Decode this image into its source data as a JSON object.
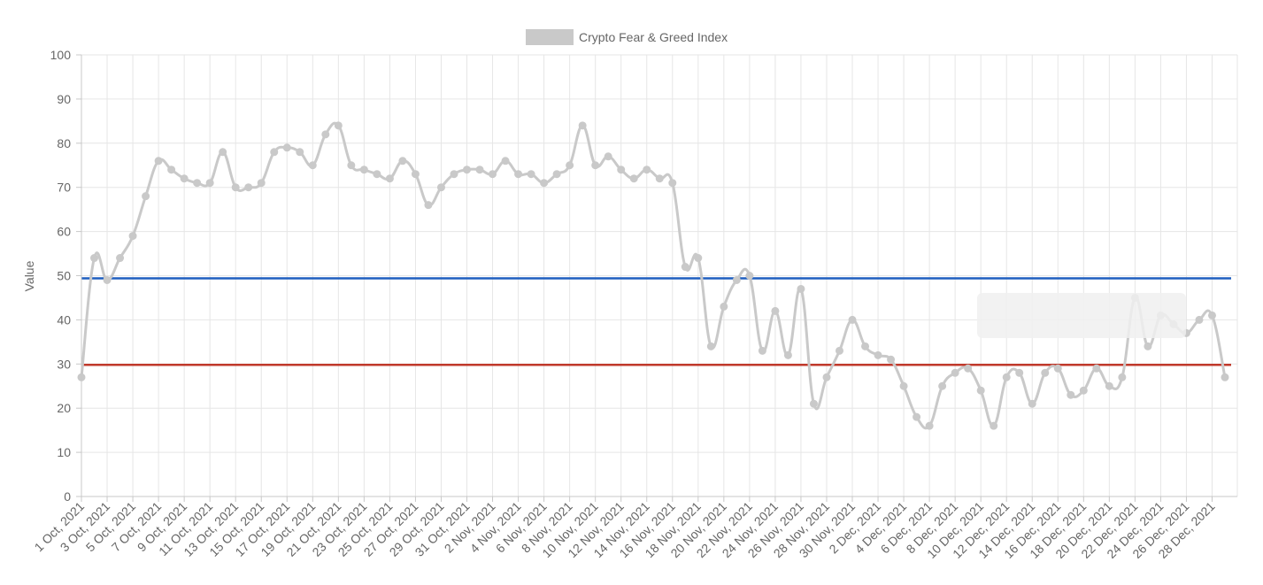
{
  "colors": {
    "series_line": "#c9c9c9",
    "series_point": "#c9c9c9",
    "upper_line": "#1f5fbf",
    "lower_line": "#c0392b",
    "grid": "#e6e6e6",
    "axis": "#c8c8c8",
    "tick_text": "#666666",
    "tooltip_bg": "#f0f0f0"
  },
  "chart_data": {
    "type": "line",
    "ylabel": "Value",
    "ylim": [
      0,
      100
    ],
    "y_ticks": [
      0,
      10,
      20,
      30,
      40,
      50,
      60,
      70,
      80,
      90,
      100
    ],
    "grid": true,
    "legend": {
      "position": "top-center",
      "label": "Crypto Fear & Greed Index"
    },
    "x": [
      "1 Oct, 2021",
      "2 Oct, 2021",
      "3 Oct, 2021",
      "4 Oct, 2021",
      "5 Oct, 2021",
      "6 Oct, 2021",
      "7 Oct, 2021",
      "8 Oct, 2021",
      "9 Oct, 2021",
      "10 Oct, 2021",
      "11 Oct, 2021",
      "12 Oct, 2021",
      "13 Oct, 2021",
      "14 Oct, 2021",
      "15 Oct, 2021",
      "16 Oct, 2021",
      "17 Oct, 2021",
      "18 Oct, 2021",
      "19 Oct, 2021",
      "20 Oct, 2021",
      "21 Oct, 2021",
      "22 Oct, 2021",
      "23 Oct, 2021",
      "24 Oct, 2021",
      "25 Oct, 2021",
      "26 Oct, 2021",
      "27 Oct, 2021",
      "28 Oct, 2021",
      "29 Oct, 2021",
      "30 Oct, 2021",
      "31 Oct, 2021",
      "1 Nov, 2021",
      "2 Nov, 2021",
      "3 Nov, 2021",
      "4 Nov, 2021",
      "5 Nov, 2021",
      "6 Nov, 2021",
      "7 Nov, 2021",
      "8 Nov, 2021",
      "9 Nov, 2021",
      "10 Nov, 2021",
      "11 Nov, 2021",
      "12 Nov, 2021",
      "13 Nov, 2021",
      "14 Nov, 2021",
      "15 Nov, 2021",
      "16 Nov, 2021",
      "17 Nov, 2021",
      "18 Nov, 2021",
      "19 Nov, 2021",
      "20 Nov, 2021",
      "21 Nov, 2021",
      "22 Nov, 2021",
      "23 Nov, 2021",
      "24 Nov, 2021",
      "25 Nov, 2021",
      "26 Nov, 2021",
      "27 Nov, 2021",
      "28 Nov, 2021",
      "29 Nov, 2021",
      "30 Nov, 2021",
      "1 Dec, 2021",
      "2 Dec, 2021",
      "3 Dec, 2021",
      "4 Dec, 2021",
      "5 Dec, 2021",
      "6 Dec, 2021",
      "7 Dec, 2021",
      "8 Dec, 2021",
      "9 Dec, 2021",
      "10 Dec, 2021",
      "11 Dec, 2021",
      "12 Dec, 2021",
      "13 Dec, 2021",
      "14 Dec, 2021",
      "15 Dec, 2021",
      "16 Dec, 2021",
      "17 Dec, 2021",
      "18 Dec, 2021",
      "19 Dec, 2021",
      "20 Dec, 2021",
      "21 Dec, 2021",
      "22 Dec, 2021",
      "23 Dec, 2021",
      "24 Dec, 2021",
      "25 Dec, 2021",
      "26 Dec, 2021",
      "27 Dec, 2021",
      "28 Dec, 2021",
      "29 Dec, 2021"
    ],
    "x_tick_labels": [
      "1 Oct, 2021",
      "3 Oct, 2021",
      "5 Oct, 2021",
      "7 Oct, 2021",
      "9 Oct, 2021",
      "11 Oct, 2021",
      "13 Oct, 2021",
      "15 Oct, 2021",
      "17 Oct, 2021",
      "19 Oct, 2021",
      "21 Oct, 2021",
      "23 Oct, 2021",
      "25 Oct, 2021",
      "27 Oct, 2021",
      "29 Oct, 2021",
      "31 Oct, 2021",
      "2 Nov, 2021",
      "4 Nov, 2021",
      "6 Nov, 2021",
      "8 Nov, 2021",
      "10 Nov, 2021",
      "12 Nov, 2021",
      "14 Nov, 2021",
      "16 Nov, 2021",
      "18 Nov, 2021",
      "20 Nov, 2021",
      "22 Nov, 2021",
      "24 Nov, 2021",
      "26 Nov, 2021",
      "28 Nov, 2021",
      "30 Nov, 2021",
      "2 Dec, 2021",
      "4 Dec, 2021",
      "6 Dec, 2021",
      "8 Dec, 2021",
      "10 Dec, 2021",
      "12 Dec, 2021",
      "14 Dec, 2021",
      "16 Dec, 2021",
      "18 Dec, 2021",
      "20 Dec, 2021",
      "22 Dec, 2021",
      "24 Dec, 2021",
      "26 Dec, 2021",
      "28 Dec, 2021"
    ],
    "series": [
      {
        "name": "Crypto Fear & Greed Index",
        "values": [
          27,
          54,
          49,
          54,
          59,
          68,
          76,
          74,
          72,
          71,
          71,
          78,
          70,
          70,
          71,
          78,
          79,
          78,
          75,
          82,
          84,
          75,
          74,
          73,
          72,
          76,
          73,
          66,
          70,
          73,
          74,
          74,
          73,
          76,
          73,
          73,
          71,
          73,
          75,
          84,
          75,
          77,
          74,
          72,
          74,
          72,
          71,
          52,
          54,
          34,
          43,
          49,
          50,
          33,
          42,
          32,
          47,
          21,
          27,
          33,
          40,
          34,
          32,
          31,
          25,
          18,
          16,
          25,
          28,
          29,
          24,
          16,
          27,
          28,
          21,
          28,
          29,
          23,
          24,
          29,
          25,
          27,
          45,
          34,
          41,
          39,
          37,
          40,
          41,
          27
        ]
      }
    ],
    "reference_lines": [
      {
        "value": 49.4,
        "color": "#1f5fbf"
      },
      {
        "value": 29.8,
        "color": "#c0392b"
      }
    ]
  }
}
